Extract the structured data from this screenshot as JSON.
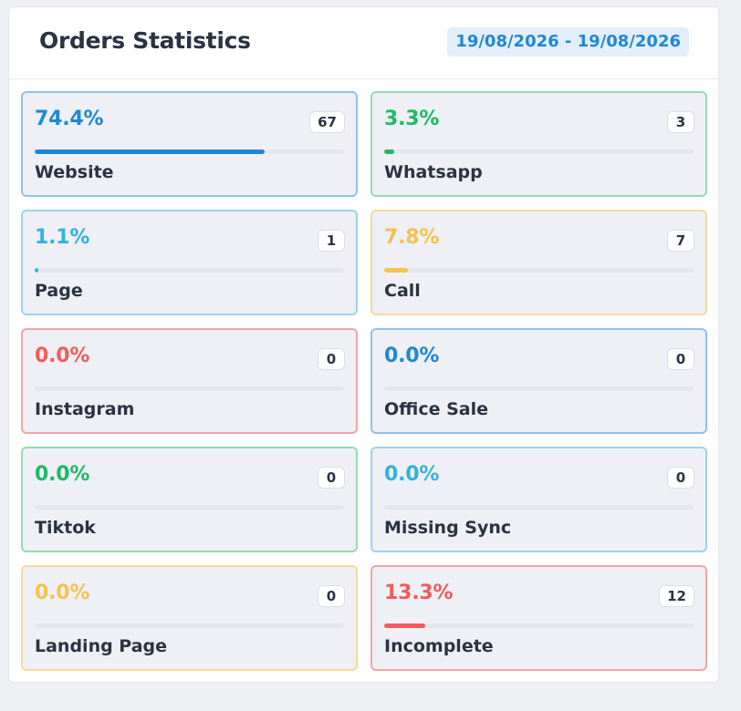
{
  "header": {
    "title": "Orders Statistics",
    "date_range": "19/08/2026 - 19/08/2026"
  },
  "colors": {
    "blue": "#1e88d6",
    "green": "#1fba66",
    "light_blue": "#33b2de",
    "yellow": "#f6c24e",
    "red": "#f25c5c"
  },
  "sources": [
    {
      "name": "Website",
      "percent": "74.4%",
      "count": "67",
      "progress": 0.744,
      "color": "#1e88d6",
      "border": "#8ec2ec"
    },
    {
      "name": "Whatsapp",
      "percent": "3.3%",
      "count": "3",
      "progress": 0.033,
      "color": "#1fba66",
      "border": "#95dbb3"
    },
    {
      "name": "Page",
      "percent": "1.1%",
      "count": "1",
      "progress": 0.011,
      "color": "#33b2de",
      "border": "#9dd3ee"
    },
    {
      "name": "Call",
      "percent": "7.8%",
      "count": "7",
      "progress": 0.078,
      "color": "#f6c24e",
      "border": "#f5da98"
    },
    {
      "name": "Instagram",
      "percent": "0.0%",
      "count": "0",
      "progress": 0,
      "color": "#f25c5c",
      "border": "#f2a5a5"
    },
    {
      "name": "Office Sale",
      "percent": "0.0%",
      "count": "0",
      "progress": 0,
      "color": "#1e88d6",
      "border": "#8ec2ec"
    },
    {
      "name": "Tiktok",
      "percent": "0.0%",
      "count": "0",
      "progress": 0,
      "color": "#1fba66",
      "border": "#95dbb3"
    },
    {
      "name": "Missing Sync",
      "percent": "0.0%",
      "count": "0",
      "progress": 0,
      "color": "#33b2de",
      "border": "#9dd3ee"
    },
    {
      "name": "Landing Page",
      "percent": "0.0%",
      "count": "0",
      "progress": 0,
      "color": "#f6c24e",
      "border": "#f5da98"
    },
    {
      "name": "Incomplete",
      "percent": "13.3%",
      "count": "12",
      "progress": 0.133,
      "color": "#f25c5c",
      "border": "#f2a5a5"
    }
  ]
}
